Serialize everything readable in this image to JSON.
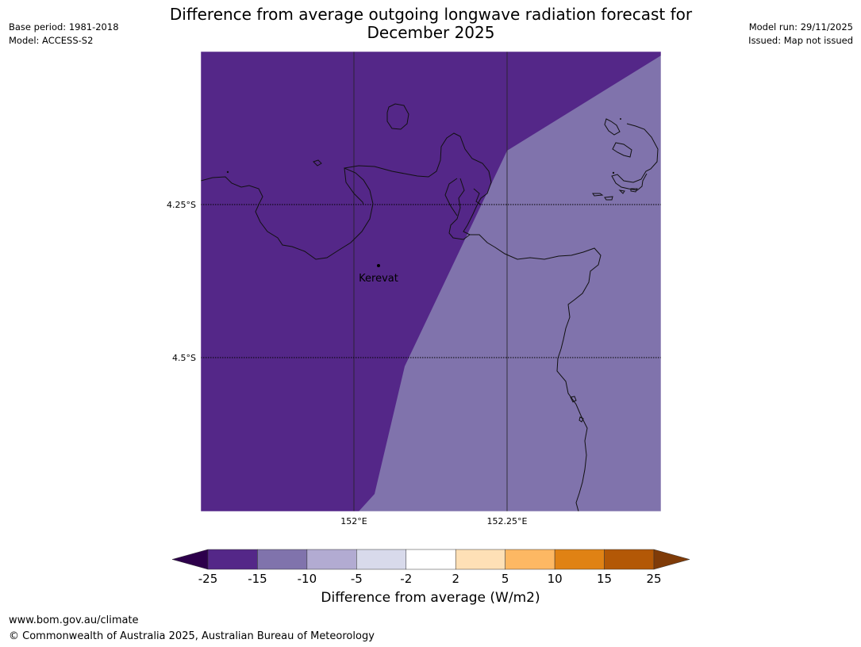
{
  "title": {
    "line1": "Difference from average outgoing longwave radiation forecast for",
    "line2": "December 2025"
  },
  "meta_left": {
    "base_period": "Base period: 1981-2018",
    "model": "Model: ACCESS-S2"
  },
  "meta_right": {
    "model_run": "Model run: 29/11/2025",
    "issued": "Issued: Map not issued"
  },
  "map": {
    "lat_labels": [
      "4.25°S",
      "4.5°S"
    ],
    "lon_labels": [
      "152°E",
      "152.25°E"
    ],
    "place": "Kerevat",
    "fill_colors": {
      "dark": "#542788",
      "light": "#8073ac"
    }
  },
  "colorbar": {
    "ticks": [
      "-25",
      "-15",
      "-10",
      "-5",
      "-2",
      "2",
      "5",
      "10",
      "15",
      "25"
    ],
    "colors": [
      "#2d004b",
      "#542788",
      "#8073ac",
      "#b2abd2",
      "#d8daeb",
      "#ffffff",
      "#fee0b6",
      "#fdb863",
      "#e08214",
      "#b35806",
      "#7f3b08"
    ],
    "label": "Difference from average (W/m2)"
  },
  "footer": {
    "url": "www.bom.gov.au/climate",
    "copyright": "© Commonwealth of Australia 2025, Australian Bureau of Meteorology"
  }
}
